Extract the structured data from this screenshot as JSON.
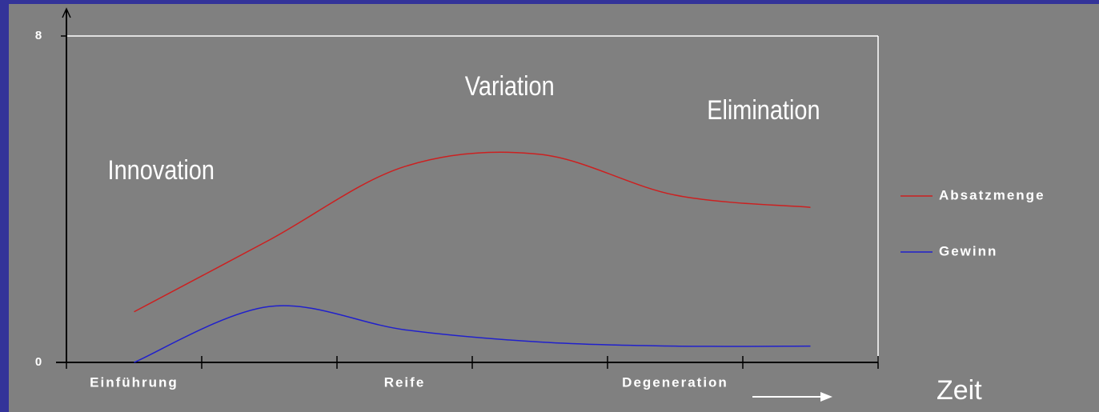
{
  "chart_data": {
    "type": "line",
    "categories": [
      "Einführung",
      null,
      "Reife",
      null,
      "Degeneration",
      null
    ],
    "series": [
      {
        "name": "Absatzmenge",
        "color": "#cc2020",
        "values": [
          1.24,
          3.0,
          4.8,
          5.1,
          4.1,
          3.8
        ]
      },
      {
        "name": "Gewinn",
        "color": "#2020cc",
        "values": [
          0,
          1.37,
          0.8,
          0.5,
          0.4,
          0.4
        ]
      }
    ],
    "ylim": [
      0,
      8
    ],
    "yticks": [
      0,
      8
    ],
    "annotations": [
      "Innovation",
      "Variation",
      "Elimination"
    ],
    "xlabel": "Zeit",
    "legend": "right"
  }
}
